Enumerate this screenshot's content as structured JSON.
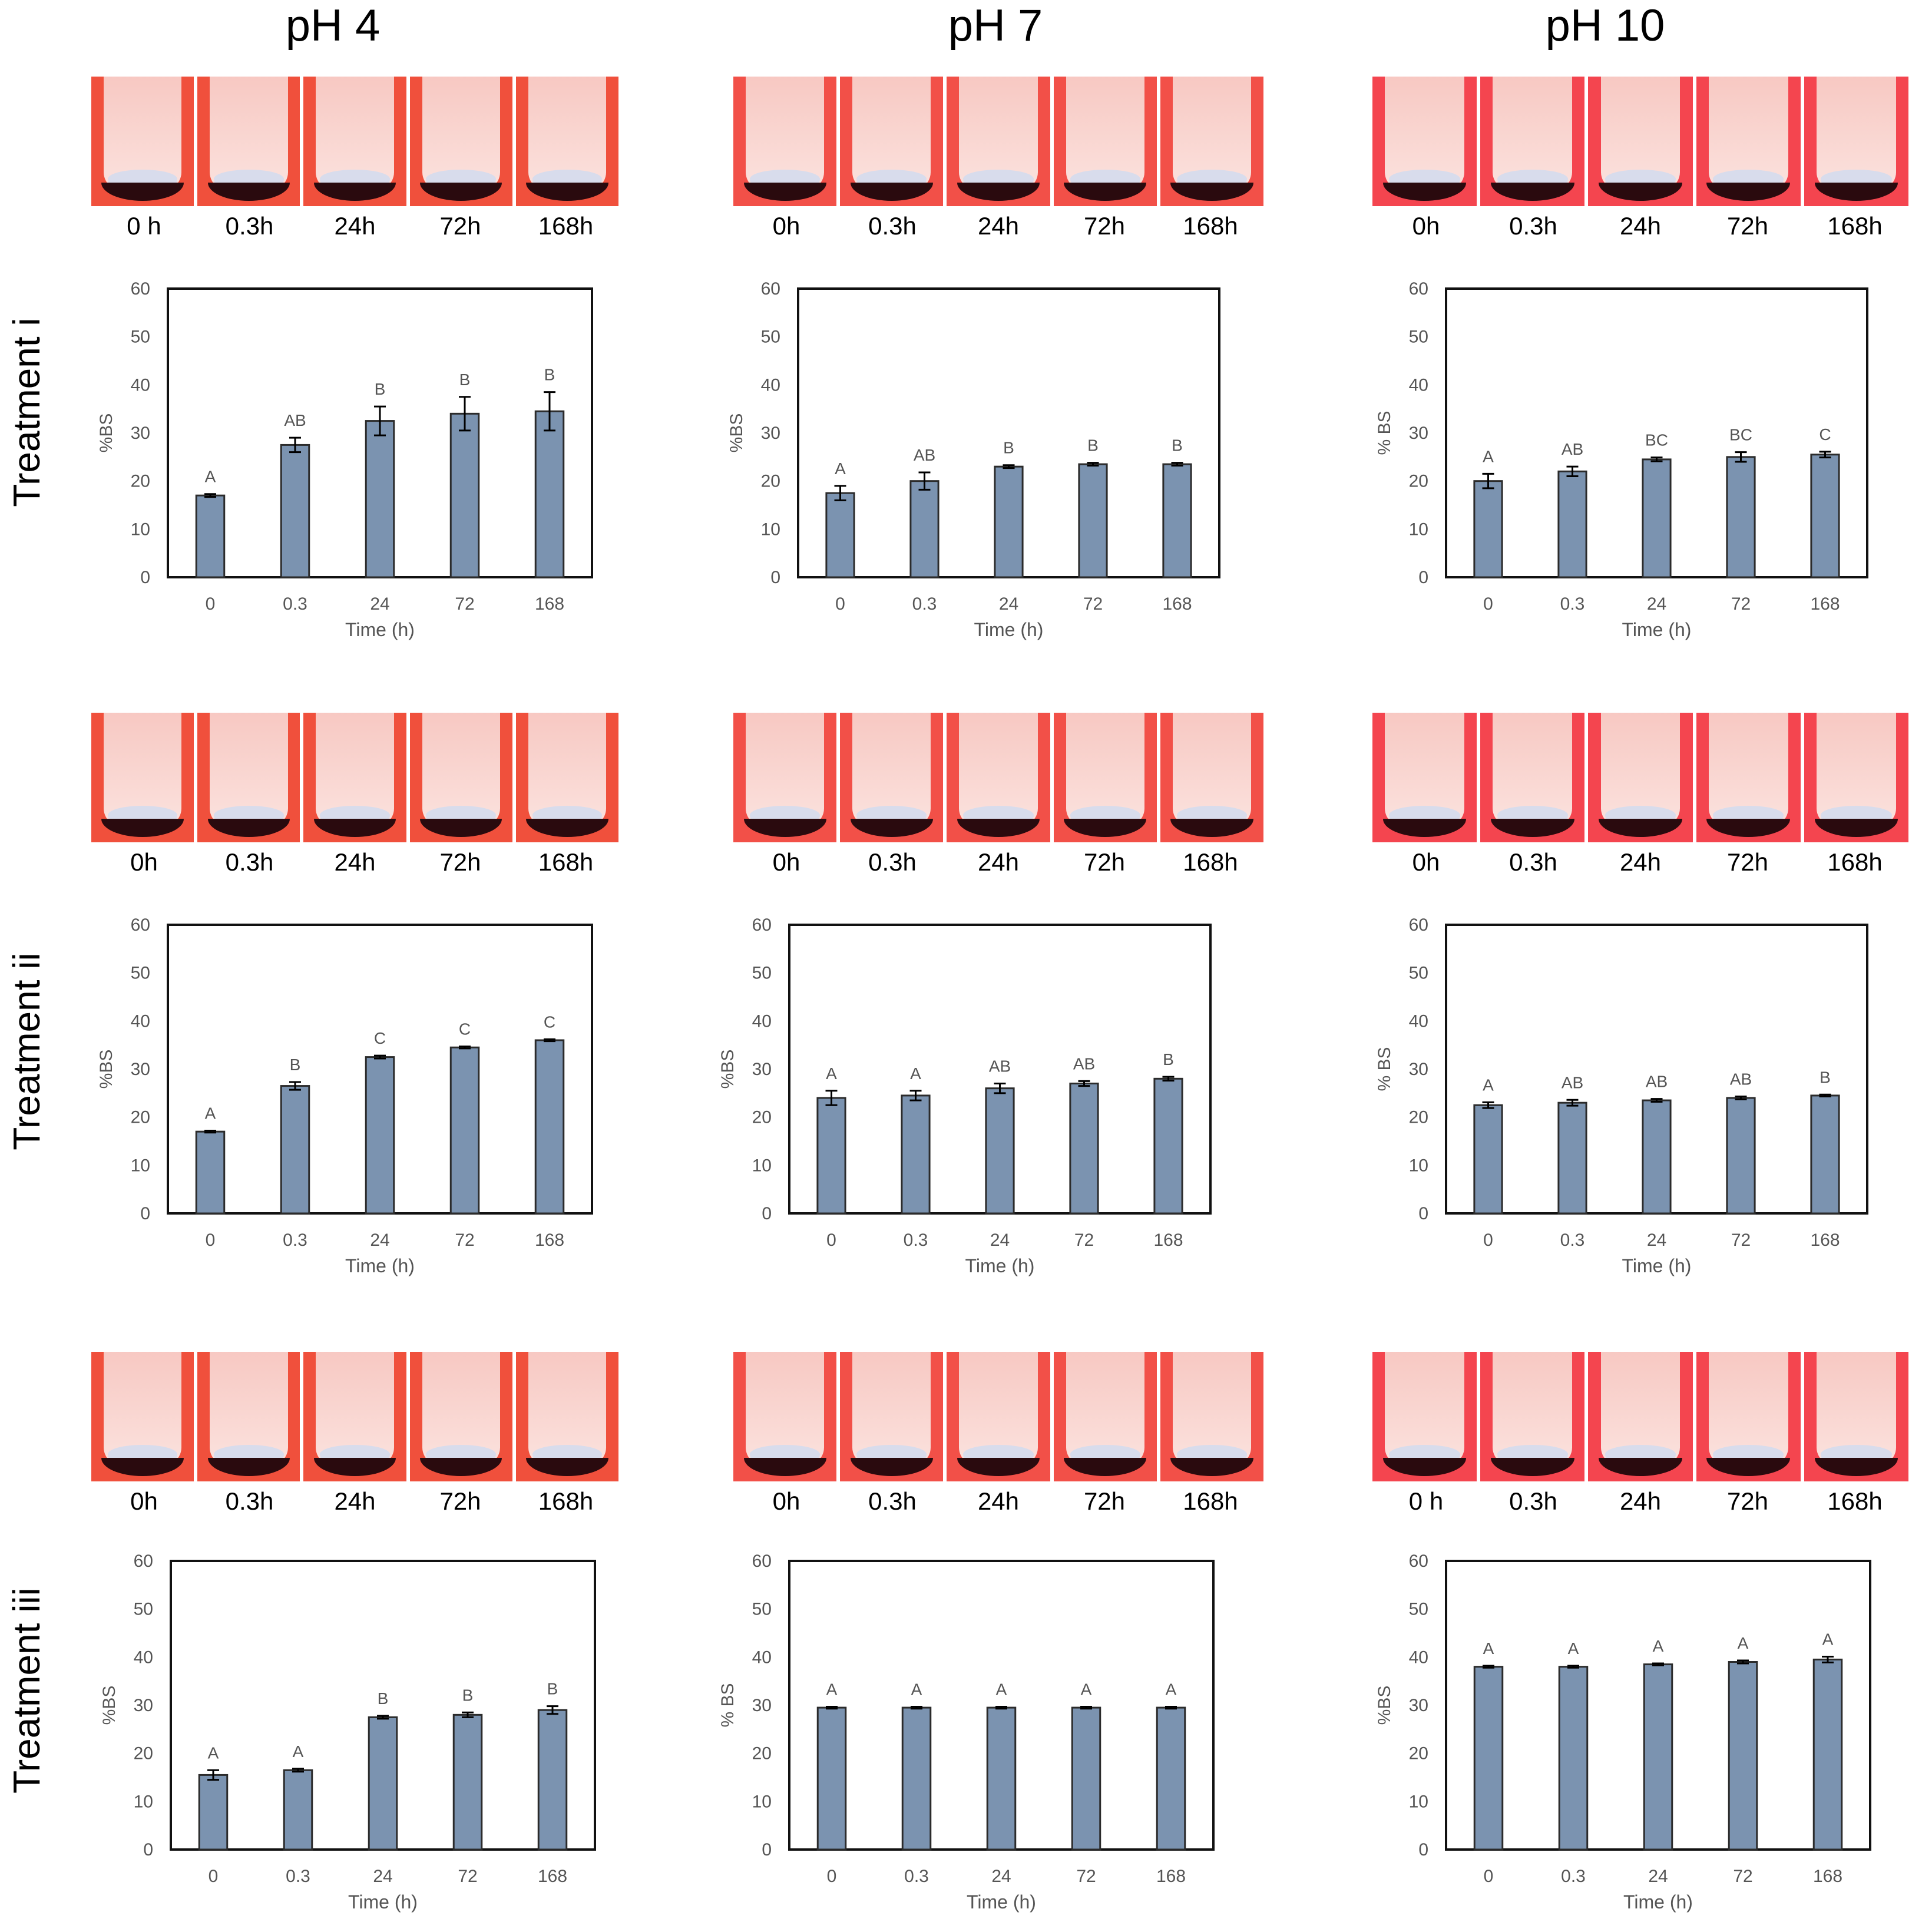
{
  "columns": [
    "pH 4",
    "pH 7",
    "pH 10"
  ],
  "rows": [
    "Treatment i",
    "Treatment ii",
    "Treatment iii"
  ],
  "time_labels": [
    [
      [
        "0 h",
        "0.3h",
        "24h",
        "72h",
        "168h"
      ],
      [
        "0h",
        "0.3h",
        "24h",
        "72h",
        "168h"
      ],
      [
        "0h",
        "0.3h",
        "24h",
        "72h",
        "168h"
      ]
    ],
    [
      [
        "0h",
        "0.3h",
        "24h",
        "72h",
        "168h"
      ],
      [
        "0h",
        "0.3h",
        "24h",
        "72h",
        "168h"
      ],
      [
        "0h",
        "0.3h",
        "24h",
        "72h",
        "168h"
      ]
    ],
    [
      [
        "0h",
        "0.3h",
        "24h",
        "72h",
        "168h"
      ],
      [
        "0h",
        "0.3h",
        "24h",
        "72h",
        "168h"
      ],
      [
        "0 h",
        "0.3h",
        "24h",
        "72h",
        "168h"
      ]
    ]
  ],
  "colors": {
    "bar": "#7b93b0",
    "bar_edge": "#2b2b2b",
    "photo_bg": [
      "#f0503c",
      "#f25048",
      "#f4454f"
    ],
    "tube_fill": "#f7c6c0",
    "sediment": "#d8dcec"
  },
  "chart_data": [
    {
      "type": "bar",
      "row": 0,
      "col": 0,
      "categories": [
        "0",
        "0.3",
        "24",
        "72",
        "168"
      ],
      "values": [
        17,
        27.5,
        32.5,
        34,
        34.5
      ],
      "errors": [
        0.3,
        1.5,
        3,
        3.5,
        4
      ],
      "letters": [
        "A",
        "AB",
        "B",
        "B",
        "B"
      ],
      "xlabel": "Time (h)",
      "ylabel": "%BS",
      "ylim": [
        0,
        60
      ],
      "yticks": [
        0,
        10,
        20,
        30,
        40,
        50,
        60
      ]
    },
    {
      "type": "bar",
      "row": 0,
      "col": 1,
      "categories": [
        "0",
        "0.3",
        "24",
        "72",
        "168"
      ],
      "values": [
        17.5,
        20,
        23,
        23.5,
        23.5
      ],
      "errors": [
        1.5,
        1.8,
        0.3,
        0.3,
        0.3
      ],
      "letters": [
        "A",
        "AB",
        "B",
        "B",
        "B"
      ],
      "xlabel": "Time (h)",
      "ylabel": "%BS",
      "ylim": [
        0,
        60
      ],
      "yticks": [
        0,
        10,
        20,
        30,
        40,
        50,
        60
      ]
    },
    {
      "type": "bar",
      "row": 0,
      "col": 2,
      "categories": [
        "0",
        "0.3",
        "24",
        "72",
        "168"
      ],
      "values": [
        20,
        22,
        24.5,
        25,
        25.5
      ],
      "errors": [
        1.5,
        1,
        0.4,
        1,
        0.6
      ],
      "letters": [
        "A",
        "AB",
        "BC",
        "BC",
        "C"
      ],
      "xlabel": "Time (h)",
      "ylabel": "% BS",
      "ylim": [
        0,
        60
      ],
      "yticks": [
        0,
        10,
        20,
        30,
        40,
        50,
        60
      ]
    },
    {
      "type": "bar",
      "row": 1,
      "col": 0,
      "categories": [
        "0",
        "0.3",
        "24",
        "72",
        "168"
      ],
      "values": [
        17,
        26.5,
        32.5,
        34.5,
        36
      ],
      "errors": [
        0.2,
        0.8,
        0.3,
        0.2,
        0.2
      ],
      "letters": [
        "A",
        "B",
        "C",
        "C",
        "C"
      ],
      "xlabel": "Time (h)",
      "ylabel": "%BS",
      "ylim": [
        0,
        60
      ],
      "yticks": [
        0,
        10,
        20,
        30,
        40,
        50,
        60
      ]
    },
    {
      "type": "bar",
      "row": 1,
      "col": 1,
      "categories": [
        "0",
        "0.3",
        "24",
        "72",
        "168"
      ],
      "values": [
        24,
        24.5,
        26,
        27,
        28
      ],
      "errors": [
        1.5,
        1,
        1,
        0.5,
        0.4
      ],
      "letters": [
        "A",
        "A",
        "AB",
        "AB",
        "B"
      ],
      "xlabel": "Time (h)",
      "ylabel": "%BS",
      "ylim": [
        0,
        60
      ],
      "yticks": [
        0,
        10,
        20,
        30,
        40,
        50,
        60
      ]
    },
    {
      "type": "bar",
      "row": 1,
      "col": 2,
      "categories": [
        "0",
        "0.3",
        "24",
        "72",
        "168"
      ],
      "values": [
        22.5,
        23,
        23.5,
        24,
        24.5
      ],
      "errors": [
        0.6,
        0.6,
        0.3,
        0.3,
        0.2
      ],
      "letters": [
        "A",
        "AB",
        "AB",
        "AB",
        "B"
      ],
      "xlabel": "Time (h)",
      "ylabel": "% BS",
      "ylim": [
        0,
        60
      ],
      "yticks": [
        0,
        10,
        20,
        30,
        40,
        50,
        60
      ]
    },
    {
      "type": "bar",
      "row": 2,
      "col": 0,
      "categories": [
        "0",
        "0.3",
        "24",
        "72",
        "168"
      ],
      "values": [
        15.5,
        16.5,
        27.5,
        28,
        29
      ],
      "errors": [
        1,
        0.3,
        0.3,
        0.5,
        0.8
      ],
      "letters": [
        "A",
        "A",
        "B",
        "B",
        "B"
      ],
      "xlabel": "Time (h)",
      "ylabel": "%BS",
      "ylim": [
        0,
        60
      ],
      "yticks": [
        0,
        10,
        20,
        30,
        40,
        50,
        60
      ]
    },
    {
      "type": "bar",
      "row": 2,
      "col": 1,
      "categories": [
        "0",
        "0.3",
        "24",
        "72",
        "168"
      ],
      "values": [
        29.5,
        29.5,
        29.5,
        29.5,
        29.5
      ],
      "errors": [
        0.2,
        0.2,
        0.2,
        0.2,
        0.2
      ],
      "letters": [
        "A",
        "A",
        "A",
        "A",
        "A"
      ],
      "xlabel": "Time (h)",
      "ylabel": "% BS",
      "ylim": [
        0,
        60
      ],
      "yticks": [
        0,
        10,
        20,
        30,
        40,
        50,
        60
      ]
    },
    {
      "type": "bar",
      "row": 2,
      "col": 2,
      "categories": [
        "0",
        "0.3",
        "24",
        "72",
        "168"
      ],
      "values": [
        38,
        38,
        38.5,
        39,
        39.5
      ],
      "errors": [
        0.2,
        0.2,
        0.2,
        0.3,
        0.6
      ],
      "letters": [
        "A",
        "A",
        "A",
        "A",
        "A"
      ],
      "xlabel": "Time (h)",
      "ylabel": "%BS",
      "ylim": [
        0,
        60
      ],
      "yticks": [
        0,
        10,
        20,
        30,
        40,
        50,
        60
      ]
    }
  ]
}
